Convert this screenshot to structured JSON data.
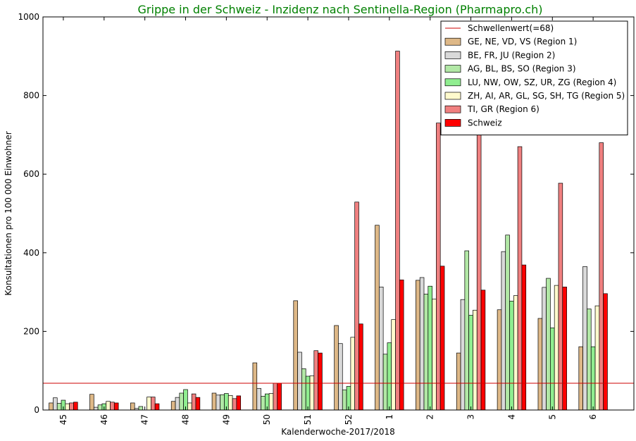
{
  "chart_data": {
    "type": "bar",
    "title": "Grippe in der Schweiz - Inzidenz nach Sentinella-Region (Pharmapro.ch)",
    "title_color": "#008000",
    "xlabel": "Kalenderwoche-2017/2018",
    "ylabel": "Konsultationen pro 100 000 Einwohner",
    "ylim": [
      0,
      1000
    ],
    "yticks": [
      0,
      200,
      400,
      600,
      800,
      1000
    ],
    "grid": false,
    "legend_position": "top-right",
    "categories": [
      "45",
      "46",
      "47",
      "48",
      "49",
      "50",
      "51",
      "52",
      "1",
      "2",
      "3",
      "4",
      "5",
      "6"
    ],
    "threshold": {
      "name": "Schwellenwert(=68)",
      "value": 68,
      "color": "#cc0000"
    },
    "series": [
      {
        "name": "GE, NE, VD, VS (Region 1)",
        "color": "#deb887",
        "values": [
          18,
          40,
          18,
          22,
          43,
          120,
          278,
          215,
          470,
          330,
          145,
          255,
          233,
          161
        ]
      },
      {
        "name": "BE, FR, JU (Region 2)",
        "color": "#d9d9d9",
        "values": [
          31,
          7,
          4,
          32,
          38,
          55,
          147,
          169,
          313,
          337,
          281,
          403,
          312,
          365
        ]
      },
      {
        "name": "AG, BL, BS, SO (Region 3)",
        "color": "#b2e8a6",
        "values": [
          17,
          13,
          9,
          43,
          39,
          35,
          105,
          51,
          142,
          295,
          405,
          445,
          335,
          257
        ]
      },
      {
        "name": "LU, NW, OW, SZ, UR, ZG (Region 4)",
        "color": "#90ee90",
        "values": [
          25,
          16,
          0,
          52,
          42,
          41,
          86,
          60,
          171,
          315,
          241,
          277,
          209,
          161
        ]
      },
      {
        "name": "ZH, AI, AR, GL, SG, SH, TG (Region 5)",
        "color": "#fffacd",
        "values": [
          16,
          22,
          33,
          18,
          37,
          42,
          87,
          185,
          230,
          282,
          254,
          291,
          317,
          265
        ]
      },
      {
        "name": "TI, GR (Region 6)",
        "color": "#f08080",
        "values": [
          18,
          20,
          33,
          41,
          29,
          68,
          151,
          529,
          913,
          730,
          730,
          670,
          577,
          680
        ]
      },
      {
        "name": "Schweiz",
        "color": "#ff0000",
        "values": [
          20,
          18,
          16,
          32,
          36,
          68,
          145,
          219,
          331,
          366,
          305,
          369,
          313,
          296
        ]
      }
    ]
  }
}
